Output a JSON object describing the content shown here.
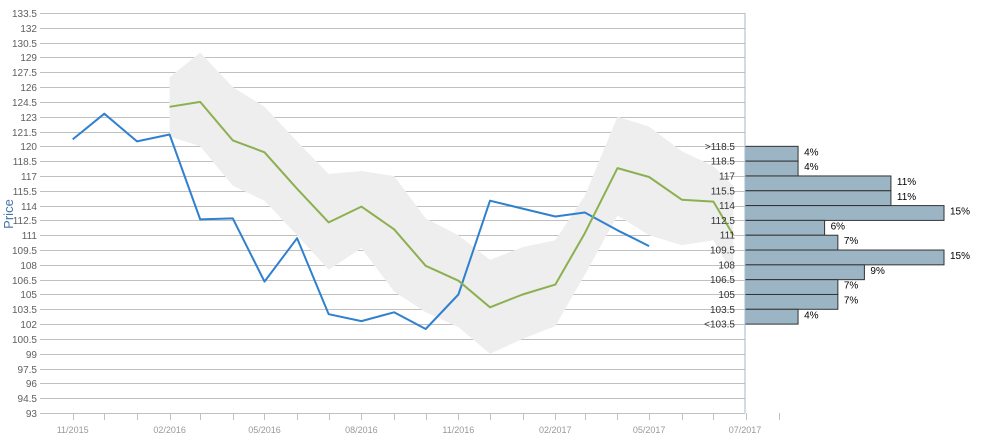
{
  "chart_data": {
    "type": "line",
    "ylabel": "Price",
    "xlabel": "",
    "ylim": [
      93,
      133.5
    ],
    "y_ticks": [
      93,
      94.5,
      96,
      97.5,
      99,
      100.5,
      102,
      103.5,
      105,
      106.5,
      108,
      109.5,
      111,
      112.5,
      114,
      115.5,
      117,
      118.5,
      120,
      121.5,
      123,
      124.5,
      126,
      127.5,
      129,
      130.5,
      132,
      133.5
    ],
    "x_ticks": [
      "11/2015",
      "02/2016",
      "05/2016",
      "08/2016",
      "11/2016",
      "02/2017",
      "05/2017",
      "07/2017"
    ],
    "grid": true,
    "series": [
      {
        "color": "#3080d0",
        "points": [
          [
            "2015-11-01",
            120.7
          ],
          [
            "2015-12-01",
            123.3
          ],
          [
            "2016-01-01",
            120.5
          ],
          [
            "2016-02-01",
            121.2
          ],
          [
            "2016-03-01",
            112.6
          ],
          [
            "2016-04-01",
            112.7
          ],
          [
            "2016-05-01",
            106.3
          ],
          [
            "2016-06-01",
            110.7
          ],
          [
            "2016-07-01",
            103.0
          ],
          [
            "2016-08-01",
            102.3
          ],
          [
            "2016-09-01",
            103.2
          ],
          [
            "2016-10-01",
            101.5
          ],
          [
            "2016-11-01",
            105.0
          ],
          [
            "2016-12-01",
            114.5
          ],
          [
            "2017-01-01",
            113.7
          ],
          [
            "2017-02-01",
            112.9
          ],
          [
            "2017-03-01",
            113.3
          ],
          [
            "2017-04-01",
            111.5
          ],
          [
            "2017-05-01",
            109.9
          ]
        ]
      },
      {
        "color": "#8cb050",
        "points": [
          [
            "2016-02-01",
            124.0
          ],
          [
            "2016-03-01",
            124.5
          ],
          [
            "2016-04-01",
            120.6
          ],
          [
            "2016-05-01",
            119.4
          ],
          [
            "2016-06-01",
            115.7
          ],
          [
            "2016-07-01",
            112.3
          ],
          [
            "2016-08-01",
            113.9
          ],
          [
            "2016-09-01",
            111.6
          ],
          [
            "2016-10-01",
            107.9
          ],
          [
            "2016-11-01",
            106.4
          ],
          [
            "2016-12-01",
            103.7
          ],
          [
            "2017-01-01",
            105.0
          ],
          [
            "2017-02-01",
            106.0
          ],
          [
            "2017-03-01",
            111.2
          ],
          [
            "2017-04-01",
            117.8
          ],
          [
            "2017-05-01",
            116.9
          ],
          [
            "2017-06-01",
            114.6
          ],
          [
            "2017-07-01",
            114.4
          ],
          [
            "2017-07-20",
            111.0
          ]
        ]
      }
    ],
    "band": {
      "color": "#eeeeee",
      "upper": [
        [
          "2016-02-01",
          127.0
        ],
        [
          "2016-03-01",
          129.5
        ],
        [
          "2016-04-01",
          126.0
        ],
        [
          "2016-05-01",
          124.0
        ],
        [
          "2016-06-01",
          120.5
        ],
        [
          "2016-07-01",
          117.2
        ],
        [
          "2016-08-01",
          117.5
        ],
        [
          "2016-09-01",
          117.0
        ],
        [
          "2016-10-01",
          112.7
        ],
        [
          "2016-11-01",
          111.0
        ],
        [
          "2016-12-01",
          108.5
        ],
        [
          "2017-01-01",
          109.8
        ],
        [
          "2017-02-01",
          110.5
        ],
        [
          "2017-03-01",
          115.0
        ],
        [
          "2017-04-01",
          123.0
        ],
        [
          "2017-05-01",
          122.0
        ],
        [
          "2017-06-01",
          119.5
        ],
        [
          "2017-07-01",
          118.0
        ],
        [
          "2017-07-20",
          116.0
        ]
      ],
      "lower": [
        [
          "2016-02-01",
          121.0
        ],
        [
          "2016-03-01",
          120.0
        ],
        [
          "2016-04-01",
          116.0
        ],
        [
          "2016-05-01",
          114.5
        ],
        [
          "2016-06-01",
          111.0
        ],
        [
          "2016-07-01",
          107.5
        ],
        [
          "2016-08-01",
          109.7
        ],
        [
          "2016-09-01",
          105.3
        ],
        [
          "2016-10-01",
          103.2
        ],
        [
          "2016-11-01",
          101.7
        ],
        [
          "2016-12-01",
          99.0
        ],
        [
          "2017-01-01",
          100.5
        ],
        [
          "2017-02-01",
          101.8
        ],
        [
          "2017-03-01",
          107.0
        ],
        [
          "2017-04-01",
          113.0
        ],
        [
          "2017-05-01",
          111.0
        ],
        [
          "2017-06-01",
          110.0
        ],
        [
          "2017-07-01",
          110.5
        ],
        [
          "2017-07-20",
          107.0
        ]
      ]
    },
    "histogram": {
      "color": "#9bb5c4",
      "bins": [
        {
          "label": ">118.5",
          "value": 4,
          "pct": "4%",
          "y_low": 118.5,
          "y_high": 120
        },
        {
          "label": "118.5",
          "value": 4,
          "pct": "4%",
          "y_low": 117,
          "y_high": 118.5
        },
        {
          "label": "117",
          "value": 11,
          "pct": "11%",
          "y_low": 115.5,
          "y_high": 117
        },
        {
          "label": "115.5",
          "value": 11,
          "pct": "11%",
          "y_low": 114,
          "y_high": 115.5
        },
        {
          "label": "114",
          "value": 15,
          "pct": "15%",
          "y_low": 112.5,
          "y_high": 114
        },
        {
          "label": "112.5",
          "value": 6,
          "pct": "6%",
          "y_low": 111,
          "y_high": 112.5
        },
        {
          "label": "111",
          "value": 7,
          "pct": "7%",
          "y_low": 109.5,
          "y_high": 111
        },
        {
          "label": "109.5",
          "value": 15,
          "pct": "15%",
          "y_low": 108,
          "y_high": 109.5
        },
        {
          "label": "108",
          "value": 9,
          "pct": "9%",
          "y_low": 106.5,
          "y_high": 108
        },
        {
          "label": "106.5",
          "value": 7,
          "pct": "7%",
          "y_low": 105,
          "y_high": 106.5
        },
        {
          "label": "105",
          "value": 7,
          "pct": "7%",
          "y_low": 103.5,
          "y_high": 105
        },
        {
          "label": "103.5",
          "value": 4,
          "pct": "4%",
          "y_low": 102,
          "y_high": 103.5
        },
        {
          "label": "<103.5",
          "value": 0,
          "pct": "",
          "y_low": 102,
          "y_high": 102
        }
      ]
    }
  }
}
